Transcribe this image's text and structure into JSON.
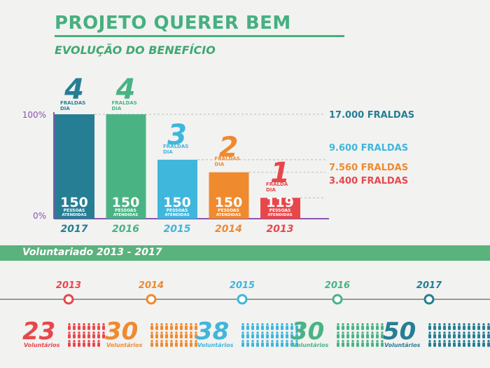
{
  "header": {
    "title": "PROJETO QUERER BEM",
    "subtitle": "EVOLUÇÃO DO BENEFÍCIO"
  },
  "chart_data": {
    "type": "bar",
    "categories": [
      "2017",
      "2016",
      "2015",
      "2014",
      "2013"
    ],
    "values": [
      17000,
      17000,
      9600,
      7560,
      3400
    ],
    "value_labels": [
      "17.000 FRALDAS",
      "17.000 FRALDAS",
      "9.600 FRALDAS",
      "7.560 FRALDAS",
      "3.400 FRALDAS"
    ],
    "ylim": [
      0,
      17000
    ],
    "y_tick_labels": [
      "100%",
      "0%"
    ],
    "fraldas_dia": [
      {
        "value": "4",
        "label": "FRALDAS DIA"
      },
      {
        "value": "4",
        "label": "FRALDAS DIA"
      },
      {
        "value": "3",
        "label": "FRALDAS DIA"
      },
      {
        "value": "2",
        "label": "FRALDAS DIA"
      },
      {
        "value": "1",
        "label": "FRALDA DIA"
      }
    ],
    "pessoas_atendidas": [
      150,
      150,
      150,
      150,
      119
    ],
    "pessoas_label": "PESSOAS ATENDIDAS",
    "colors": [
      "#257e94",
      "#49b384",
      "#3fb6db",
      "#ef8a2f",
      "#e8474a"
    ],
    "legend": [
      "17.000 FRALDAS",
      "9.600 FRALDAS",
      "7.560 FRALDAS",
      "3.400 FRALDAS"
    ],
    "legend_colors": [
      "#257e94",
      "#3fb6db",
      "#ef8a2f",
      "#e8474a"
    ]
  },
  "volunteer_section": {
    "title": "Voluntariado 2013 - 2017",
    "label": "Voluntários",
    "items": [
      {
        "year": "2013",
        "count": 23,
        "color": "#e8474a"
      },
      {
        "year": "2014",
        "count": 30,
        "color": "#ef8a2f"
      },
      {
        "year": "2015",
        "count": 38,
        "color": "#3fb6db"
      },
      {
        "year": "2016",
        "count": 30,
        "color": "#49b384"
      },
      {
        "year": "2017",
        "count": 50,
        "color": "#257e94"
      }
    ]
  }
}
